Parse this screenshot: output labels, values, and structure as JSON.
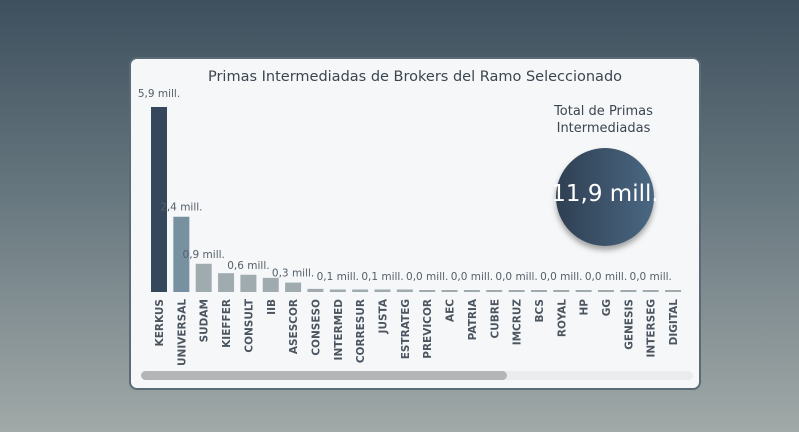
{
  "chart_data": {
    "type": "bar",
    "title": "Primas Intermediadas de Brokers del Ramo Seleccionado",
    "categories": [
      "KERKUS",
      "UNIVERSAL",
      "SUDAM",
      "KIEFFER",
      "CONSULT",
      "IIB",
      "ASESCOR",
      "CONSESO",
      "INTERMED",
      "CORRESUR",
      "JUSTA",
      "ESTRATEG",
      "PREVICOR",
      "AEC",
      "PATRIA",
      "CUBRE",
      "IMCRUZ",
      "BCS",
      "ROYAL",
      "HP",
      "GG",
      "GENESIS",
      "INTERSEG",
      "DIGITAL"
    ],
    "values": [
      5.9,
      2.4,
      0.9,
      0.6,
      0.55,
      0.45,
      0.3,
      0.1,
      0.08,
      0.08,
      0.08,
      0.08,
      0.02,
      0.02,
      0.02,
      0.02,
      0.02,
      0.02,
      0.02,
      0.02,
      0.02,
      0.02,
      0.02,
      0.02
    ],
    "data_labels": [
      "5,9 mill.",
      "2,4 mill.",
      "0,9 mill.",
      null,
      "0,6 mill.",
      null,
      "0,3 mill.",
      null,
      "0,1 mill.",
      null,
      "0,1 mill.",
      null,
      "0,0 mill.",
      null,
      "0,0 mill.",
      null,
      "0,0 mill.",
      null,
      "0,0 mill.",
      null,
      "0,0 mill.",
      null,
      "0,0 mill.",
      null
    ],
    "unit": "mill.",
    "ylim": [
      0,
      5.9
    ],
    "grid": false,
    "colors": {
      "top": "#34475b",
      "second": "#7891a0",
      "rest": "#a0abb0"
    }
  },
  "kpi": {
    "title_line1": "Total de Primas",
    "title_line2": "Intermediadas",
    "value": "11,9 mill."
  }
}
